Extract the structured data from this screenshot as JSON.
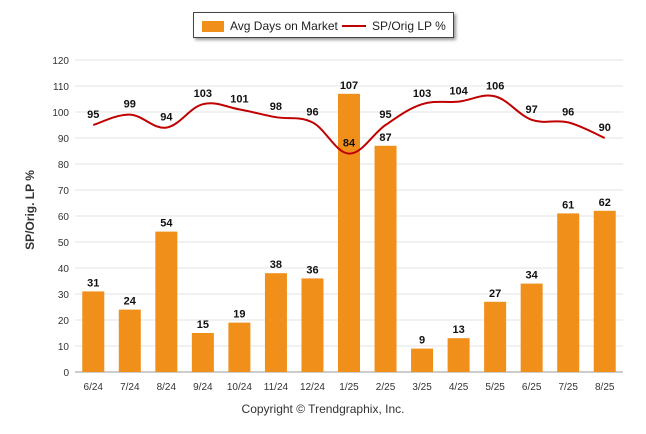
{
  "chart_data": {
    "type": "bar",
    "categories": [
      "6/24",
      "7/24",
      "8/24",
      "9/24",
      "10/24",
      "11/24",
      "12/24",
      "1/25",
      "2/25",
      "3/25",
      "4/25",
      "5/25",
      "6/25",
      "7/25",
      "8/25"
    ],
    "series": [
      {
        "name": "Avg Days on Market",
        "type": "bar",
        "color": "#f0901a",
        "values": [
          31,
          24,
          54,
          15,
          19,
          38,
          36,
          107,
          87,
          9,
          13,
          27,
          34,
          61,
          62
        ]
      },
      {
        "name": "SP/Orig LP %",
        "type": "line",
        "color": "#c00000",
        "values": [
          95,
          99,
          94,
          103,
          101,
          98,
          96,
          84,
          95,
          103,
          104,
          106,
          97,
          96,
          90
        ]
      }
    ],
    "ylabel": "SP/Orig. LP %",
    "ylim": [
      0,
      120
    ],
    "yticks": [
      0,
      10,
      20,
      30,
      40,
      50,
      60,
      70,
      80,
      90,
      100,
      110,
      120
    ],
    "grid": true,
    "legend": "top-center"
  },
  "footer": {
    "copyright": "Copyright © Trendgraphix, Inc."
  }
}
